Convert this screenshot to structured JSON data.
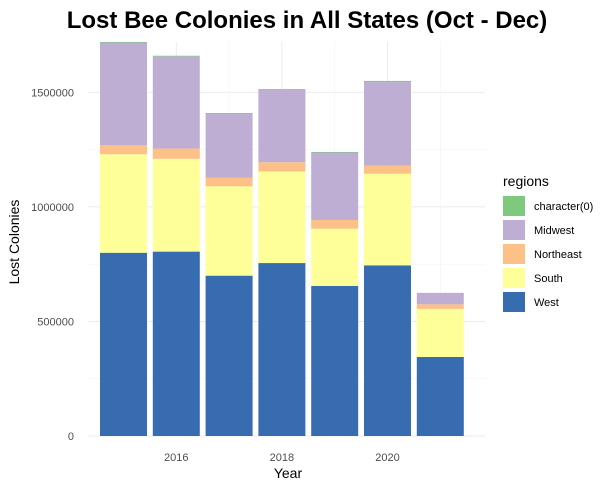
{
  "chart_data": {
    "type": "bar",
    "stacked": true,
    "title": "Lost Bee Colonies in All States (Oct - Dec)",
    "xlabel": "Year",
    "ylabel": "Lost Colonies",
    "categories": [
      2015,
      2016,
      2017,
      2018,
      2019,
      2020,
      2021
    ],
    "x_ticks": [
      "2016",
      "2018",
      "2020"
    ],
    "x_tick_values": [
      2016,
      2018,
      2020
    ],
    "y_ticks": [
      "0",
      "500000",
      "1000000",
      "1500000"
    ],
    "y_tick_values": [
      0,
      500000,
      1000000,
      1500000
    ],
    "ylim": [
      0,
      1720000
    ],
    "grid": true,
    "legend_title": "regions",
    "legend_position": "right",
    "series": [
      {
        "name": "West",
        "color": "#386cb0",
        "values": [
          800000,
          805000,
          700000,
          755000,
          655000,
          745000,
          345000
        ]
      },
      {
        "name": "South",
        "color": "#ffff99",
        "values": [
          430000,
          405000,
          390000,
          400000,
          250000,
          400000,
          210000
        ]
      },
      {
        "name": "Northeast",
        "color": "#fdc086",
        "values": [
          40000,
          45000,
          37000,
          40000,
          38000,
          35000,
          20000
        ]
      },
      {
        "name": "Midwest",
        "color": "#beaed4",
        "values": [
          448000,
          402000,
          282000,
          320000,
          296000,
          365000,
          50000
        ]
      },
      {
        "name": "character(0)",
        "color": "#7fc97f",
        "values": [
          2000,
          3000,
          1000,
          0,
          1000,
          5000,
          0
        ]
      }
    ],
    "legend_order": [
      "character(0)",
      "Midwest",
      "Northeast",
      "South",
      "West"
    ]
  }
}
